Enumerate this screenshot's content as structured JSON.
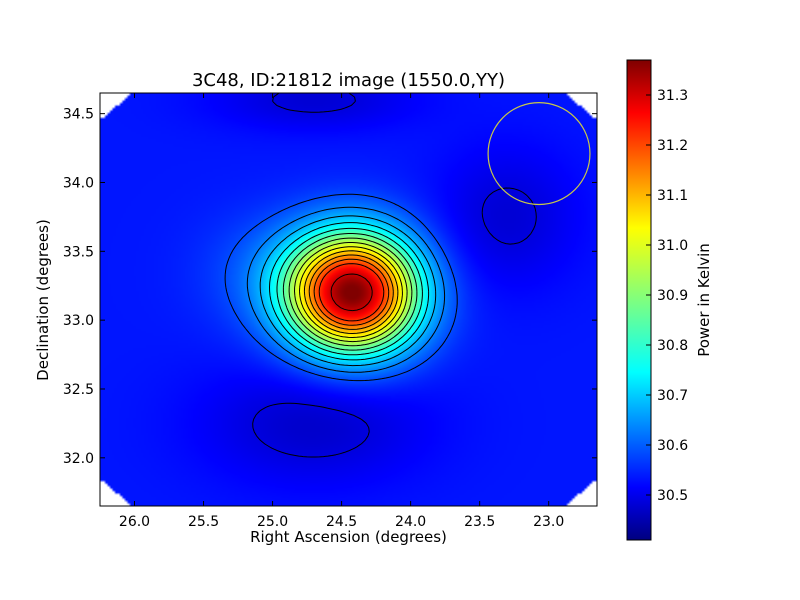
{
  "chart_data": {
    "type": "heatmap",
    "title": "3C48, ID:21812 image (1550.0,YY)",
    "xlabel": "Right Ascension (degrees)",
    "ylabel": "Declination (degrees)",
    "xlim": [
      26.25,
      22.65
    ],
    "ylim": [
      31.65,
      34.65
    ],
    "xticks": [
      26.0,
      25.5,
      25.0,
      24.5,
      24.0,
      23.5,
      23.0
    ],
    "xtick_labels": [
      "26.0",
      "25.5",
      "25.0",
      "24.5",
      "24.0",
      "23.5",
      "23.0"
    ],
    "yticks": [
      32.0,
      32.5,
      33.0,
      33.5,
      34.0,
      34.5
    ],
    "ytick_labels": [
      "32.0",
      "32.5",
      "33.0",
      "33.5",
      "34.0",
      "34.5"
    ],
    "colorbar": {
      "label": "Power in Kelvin",
      "range": [
        30.41,
        31.37
      ],
      "ticks": [
        30.5,
        30.6,
        30.7,
        30.8,
        30.9,
        31.0,
        31.1,
        31.2,
        31.3
      ],
      "tick_labels": [
        "30.5",
        "30.6",
        "30.7",
        "30.8",
        "30.9",
        "31.0",
        "31.1",
        "31.2",
        "31.3"
      ],
      "colormap": "jet"
    },
    "source_peak": {
      "ra": 24.42,
      "dec": 33.2,
      "value": 31.37
    },
    "background_level": 30.55,
    "beam_circle": {
      "ra": 23.07,
      "dec": 34.21,
      "radius_deg": 0.37,
      "color": "#c8c84a"
    },
    "contour_levels": [
      30.5,
      30.6,
      30.65,
      30.7,
      30.75,
      30.8,
      30.85,
      30.9,
      30.95,
      31.0,
      31.05,
      31.1,
      31.15,
      31.2,
      31.3
    ]
  }
}
